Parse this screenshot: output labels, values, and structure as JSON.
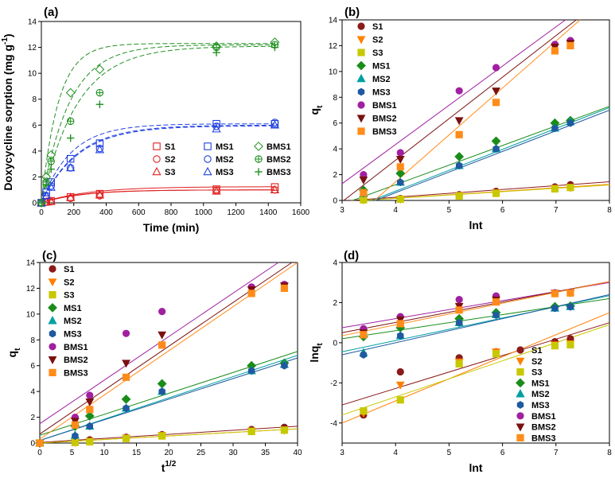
{
  "colors": {
    "S1": "#8b1a1a",
    "S2": "#ff8000",
    "S3": "#c8c800",
    "MS1": "#1a8c1a",
    "MS2": "#00a0a0",
    "MS3": "#1f5aa0",
    "BMS1": "#a020a0",
    "BMS2": "#7a1010",
    "BMS3": "#ff8c1a",
    "red": "#e02020",
    "blue": "#2040e0",
    "green": "#209020"
  },
  "chart_data": [
    {
      "id": "a",
      "type": "scatter",
      "panel_label": "(a)",
      "xlabel": "Time (min)",
      "ylabel": "Doxycycline sorption (mg g",
      "ylabel_sup": "-1",
      "ylabel_end": ")",
      "xlim": [
        0,
        1600
      ],
      "ylim": [
        0,
        14
      ],
      "xticks": [
        0,
        200,
        400,
        600,
        800,
        1000,
        1200,
        1400,
        1600
      ],
      "yticks": [
        0,
        2,
        4,
        6,
        8,
        10,
        12,
        14
      ],
      "series": [
        {
          "name": "S1",
          "group": "red",
          "marker": "square",
          "x": [
            0,
            30,
            60,
            180,
            360,
            1080,
            1440
          ],
          "y": [
            0,
            0.08,
            0.15,
            0.45,
            0.7,
            1.05,
            1.22
          ],
          "fit_qe": 1.25,
          "fit_k": 0.0035
        },
        {
          "name": "S2",
          "group": "red",
          "marker": "circle",
          "x": [
            0,
            30,
            60,
            180,
            360,
            1080,
            1440
          ],
          "y": [
            0,
            0.05,
            0.1,
            0.35,
            0.55,
            0.95,
            1.0
          ],
          "fit_qe": 1.0,
          "fit_k": 0.004
        },
        {
          "name": "S3",
          "group": "red",
          "marker": "triangle",
          "x": [
            0,
            30,
            60,
            180,
            360,
            1080,
            1440
          ],
          "y": [
            0,
            0.05,
            0.1,
            0.4,
            0.6,
            0.9,
            1.0
          ],
          "fit_qe": 1.0,
          "fit_k": 0.0042
        },
        {
          "name": "MS1",
          "group": "blue",
          "marker": "square",
          "x": [
            0,
            30,
            60,
            180,
            360,
            1080,
            1440
          ],
          "y": [
            0,
            0.8,
            1.6,
            3.4,
            4.6,
            6.1,
            6.1
          ],
          "fit_qe": 6.1,
          "fit_k": 0.0055
        },
        {
          "name": "MS2",
          "group": "blue",
          "marker": "circle",
          "x": [
            0,
            30,
            60,
            180,
            360,
            1080,
            1440
          ],
          "y": [
            0,
            0.55,
            1.3,
            2.7,
            4.2,
            5.9,
            6.2
          ],
          "fit_qe": 6.0,
          "fit_k": 0.0045
        },
        {
          "name": "MS3",
          "group": "blue",
          "marker": "triangle",
          "x": [
            0,
            30,
            60,
            180,
            360,
            1080,
            1440
          ],
          "y": [
            0,
            0.55,
            1.2,
            2.7,
            4.1,
            5.7,
            6.0
          ],
          "fit_qe": 5.95,
          "fit_k": 0.0044
        },
        {
          "name": "BMS1",
          "group": "green",
          "marker": "diamond",
          "x": [
            0,
            30,
            60,
            180,
            360,
            1080,
            1440
          ],
          "y": [
            0,
            2.0,
            3.7,
            8.5,
            10.3,
            12.1,
            12.4
          ],
          "fit_qe": 12.3,
          "fit_k": 0.0095
        },
        {
          "name": "BMS2",
          "group": "green",
          "marker": "circleplus",
          "x": [
            0,
            30,
            60,
            180,
            360,
            1080,
            1440
          ],
          "y": [
            0,
            1.6,
            3.2,
            6.3,
            8.5,
            12.0,
            12.2
          ],
          "fit_qe": 12.2,
          "fit_k": 0.0058
        },
        {
          "name": "BMS3",
          "group": "green",
          "marker": "plus",
          "x": [
            0,
            30,
            60,
            180,
            360,
            1080,
            1440
          ],
          "y": [
            0,
            1.4,
            2.6,
            5.0,
            7.6,
            11.6,
            12.0
          ],
          "fit_qe": 12.1,
          "fit_k": 0.0045
        }
      ],
      "legend": [
        [
          "S1",
          "MS1",
          "BMS1"
        ],
        [
          "S2",
          "MS2",
          "BMS2"
        ],
        [
          "S3",
          "MS3",
          "BMS3"
        ]
      ]
    },
    {
      "id": "b",
      "type": "scatter",
      "panel_label": "(b)",
      "xlabel": "lnt",
      "ylabel": "q",
      "ylabel_sub": "t",
      "xlim": [
        3,
        8
      ],
      "ylim": [
        0,
        14
      ],
      "xticks": [
        3,
        4,
        5,
        6,
        7,
        8
      ],
      "yticks": [
        0,
        2,
        4,
        6,
        8,
        10,
        12,
        14
      ],
      "x": [
        3.4,
        4.09,
        5.19,
        5.88,
        6.98,
        7.27
      ],
      "series": [
        {
          "name": "S1",
          "marker": "circle",
          "y": [
            0.05,
            0.15,
            0.45,
            0.7,
            1.05,
            1.22
          ],
          "fit": [
            [
              3,
              -0.05
            ],
            [
              8,
              1.45
            ]
          ]
        },
        {
          "name": "S2",
          "marker": "tri-down",
          "y": [
            0.05,
            0.1,
            0.4,
            0.6,
            0.95,
            1.0
          ],
          "fit": [
            [
              3,
              -0.1
            ],
            [
              8,
              1.25
            ]
          ]
        },
        {
          "name": "S3",
          "marker": "square",
          "y": [
            0.05,
            0.1,
            0.35,
            0.55,
            0.9,
            1.0
          ],
          "fit": [
            [
              3,
              -0.1
            ],
            [
              8,
              1.2
            ]
          ]
        },
        {
          "name": "MS1",
          "marker": "diamond",
          "y": [
            0.8,
            2.1,
            3.4,
            4.6,
            6.0,
            6.2
          ],
          "fit": [
            [
              3,
              -0.3
            ],
            [
              8,
              7.3
            ]
          ]
        },
        {
          "name": "MS2",
          "marker": "tri-up",
          "y": [
            0.55,
            1.4,
            2.7,
            4.0,
            5.6,
            6.1
          ],
          "fit": [
            [
              3,
              -0.9
            ],
            [
              8,
              7.2
            ]
          ]
        },
        {
          "name": "MS3",
          "marker": "hexagon",
          "y": [
            0.55,
            1.4,
            2.7,
            4.0,
            5.6,
            6.0
          ],
          "fit": [
            [
              3,
              -1.0
            ],
            [
              8,
              7.0
            ]
          ]
        },
        {
          "name": "BMS1",
          "marker": "circle",
          "y": [
            2.0,
            3.7,
            8.5,
            10.3,
            12.1,
            12.4
          ],
          "fit": [
            [
              3,
              1.3
            ],
            [
              8,
              16.5
            ]
          ]
        },
        {
          "name": "BMS2",
          "marker": "tri-down",
          "y": [
            1.6,
            3.2,
            6.2,
            8.5,
            11.9,
            12.2
          ],
          "fit": [
            [
              3,
              -0.1
            ],
            [
              8,
              16.0
            ]
          ]
        },
        {
          "name": "BMS3",
          "marker": "square",
          "y": [
            0.6,
            2.6,
            5.1,
            7.6,
            11.6,
            12.0
          ],
          "fit": [
            [
              3,
              -2.2
            ],
            [
              8,
              16.0
            ]
          ]
        }
      ],
      "legend": [
        "S1",
        "S2",
        "S3",
        "MS1",
        "MS2",
        "MS3",
        "BMS1",
        "BMS2",
        "BMS3"
      ]
    },
    {
      "id": "c",
      "type": "scatter",
      "panel_label": "(c)",
      "xlabel": "t",
      "xlabel_sup": "1/2",
      "ylabel": "q",
      "ylabel_sub": "t",
      "xlim": [
        0,
        40
      ],
      "ylim": [
        0,
        14
      ],
      "xticks": [
        0,
        5,
        10,
        15,
        20,
        25,
        30,
        35,
        40
      ],
      "yticks": [
        0,
        2,
        4,
        6,
        8,
        10,
        12,
        14
      ],
      "x": [
        0,
        5.48,
        7.75,
        13.4,
        18.97,
        32.86,
        37.95
      ],
      "series": [
        {
          "name": "S1",
          "marker": "circle",
          "y": [
            0,
            0.1,
            0.25,
            0.45,
            0.65,
            1.05,
            1.22
          ],
          "fit": [
            [
              0,
              0.05
            ],
            [
              40,
              1.3
            ]
          ]
        },
        {
          "name": "S2",
          "marker": "tri-down",
          "y": [
            0,
            0.05,
            0.15,
            0.4,
            0.6,
            0.95,
            1.0
          ],
          "fit": [
            [
              0,
              0.0
            ],
            [
              40,
              1.1
            ]
          ]
        },
        {
          "name": "S3",
          "marker": "square",
          "y": [
            0,
            0.05,
            0.1,
            0.35,
            0.55,
            0.9,
            1.0
          ],
          "fit": [
            [
              0,
              0.0
            ],
            [
              40,
              1.1
            ]
          ]
        },
        {
          "name": "MS1",
          "marker": "diamond",
          "y": [
            0,
            1.3,
            2.1,
            3.4,
            4.6,
            6.0,
            6.2
          ],
          "fit": [
            [
              0,
              0.6
            ],
            [
              40,
              7.1
            ]
          ]
        },
        {
          "name": "MS2",
          "marker": "tri-up",
          "y": [
            0,
            0.6,
            1.3,
            2.7,
            4.0,
            5.6,
            6.1
          ],
          "fit": [
            [
              0,
              0.2
            ],
            [
              40,
              6.8
            ]
          ]
        },
        {
          "name": "MS3",
          "marker": "hexagon",
          "y": [
            0,
            0.55,
            1.3,
            2.7,
            4.0,
            5.6,
            6.0
          ],
          "fit": [
            [
              0,
              0.2
            ],
            [
              40,
              6.6
            ]
          ]
        },
        {
          "name": "BMS1",
          "marker": "circle",
          "y": [
            0,
            2.0,
            3.7,
            8.5,
            10.2,
            12.1,
            12.3
          ],
          "fit": [
            [
              0,
              1.5
            ],
            [
              40,
              15.0
            ]
          ]
        },
        {
          "name": "BMS2",
          "marker": "tri-down",
          "y": [
            0,
            1.7,
            3.2,
            6.2,
            8.4,
            11.9,
            12.2
          ],
          "fit": [
            [
              0,
              0.7
            ],
            [
              40,
              14.3
            ]
          ]
        },
        {
          "name": "BMS3",
          "marker": "square",
          "y": [
            0,
            1.4,
            2.6,
            5.1,
            7.6,
            11.6,
            12.0
          ],
          "fit": [
            [
              0,
              0.3
            ],
            [
              40,
              14.0
            ]
          ]
        }
      ],
      "legend": [
        "S1",
        "S2",
        "S3",
        "MS1",
        "MS2",
        "MS3",
        "BMS1",
        "BMS2",
        "BMS3"
      ]
    },
    {
      "id": "d",
      "type": "scatter",
      "panel_label": "(d)",
      "xlabel": "lnt",
      "ylabel": "lnq",
      "ylabel_sub": "t",
      "xlim": [
        3,
        8
      ],
      "ylim": [
        -5,
        4
      ],
      "xticks": [
        3,
        4,
        5,
        6,
        7,
        8
      ],
      "yticks": [
        -4,
        -2,
        0,
        2,
        4
      ],
      "x": [
        3.4,
        4.09,
        5.19,
        5.88,
        6.98,
        7.27
      ],
      "series": [
        {
          "name": "S1",
          "marker": "circle",
          "y": [
            -3.6,
            -1.45,
            -0.75,
            -0.45,
            0.05,
            0.2
          ],
          "fit": [
            [
              3,
              -3.1
            ],
            [
              8,
              1.0
            ]
          ]
        },
        {
          "name": "S2",
          "marker": "tri-down",
          "y": [
            -3.5,
            -2.1,
            -0.95,
            -0.45,
            -0.1,
            -0.05
          ],
          "fit": [
            [
              3,
              -4.0
            ],
            [
              8,
              1.5
            ]
          ]
        },
        {
          "name": "S3",
          "marker": "square",
          "y": [
            -3.4,
            -2.85,
            -1.05,
            -0.55,
            -0.15,
            -0.1
          ],
          "fit": [
            [
              3,
              -3.6
            ],
            [
              8,
              0.9
            ]
          ]
        },
        {
          "name": "MS1",
          "marker": "diamond",
          "y": [
            0.3,
            0.75,
            1.2,
            1.5,
            1.8,
            1.83
          ],
          "fit": [
            [
              3,
              0.2
            ],
            [
              8,
              2.2
            ]
          ]
        },
        {
          "name": "MS2",
          "marker": "tri-up",
          "y": [
            -0.5,
            0.35,
            1.0,
            1.4,
            1.72,
            1.8
          ],
          "fit": [
            [
              3,
              -0.45
            ],
            [
              8,
              2.35
            ]
          ]
        },
        {
          "name": "MS3",
          "marker": "hexagon",
          "y": [
            -0.6,
            0.35,
            0.99,
            1.38,
            1.72,
            1.79
          ],
          "fit": [
            [
              3,
              -0.6
            ],
            [
              8,
              2.4
            ]
          ]
        },
        {
          "name": "BMS1",
          "marker": "circle",
          "y": [
            0.7,
            1.3,
            2.15,
            2.33,
            2.49,
            2.52
          ],
          "fit": [
            [
              3,
              0.75
            ],
            [
              8,
              3.0
            ]
          ]
        },
        {
          "name": "BMS2",
          "marker": "tri-down",
          "y": [
            0.5,
            1.15,
            1.82,
            2.14,
            2.48,
            2.5
          ],
          "fit": [
            [
              3,
              0.5
            ],
            [
              8,
              3.05
            ]
          ]
        },
        {
          "name": "BMS3",
          "marker": "square",
          "y": [
            0.4,
            0.95,
            1.63,
            2.03,
            2.45,
            2.48
          ],
          "fit": [
            [
              3,
              0.35
            ],
            [
              8,
              3.05
            ]
          ]
        }
      ],
      "legend": [
        "S1",
        "S2",
        "S3",
        "MS1",
        "MS2",
        "MS3",
        "BMS1",
        "BMS2",
        "BMS3"
      ]
    }
  ]
}
